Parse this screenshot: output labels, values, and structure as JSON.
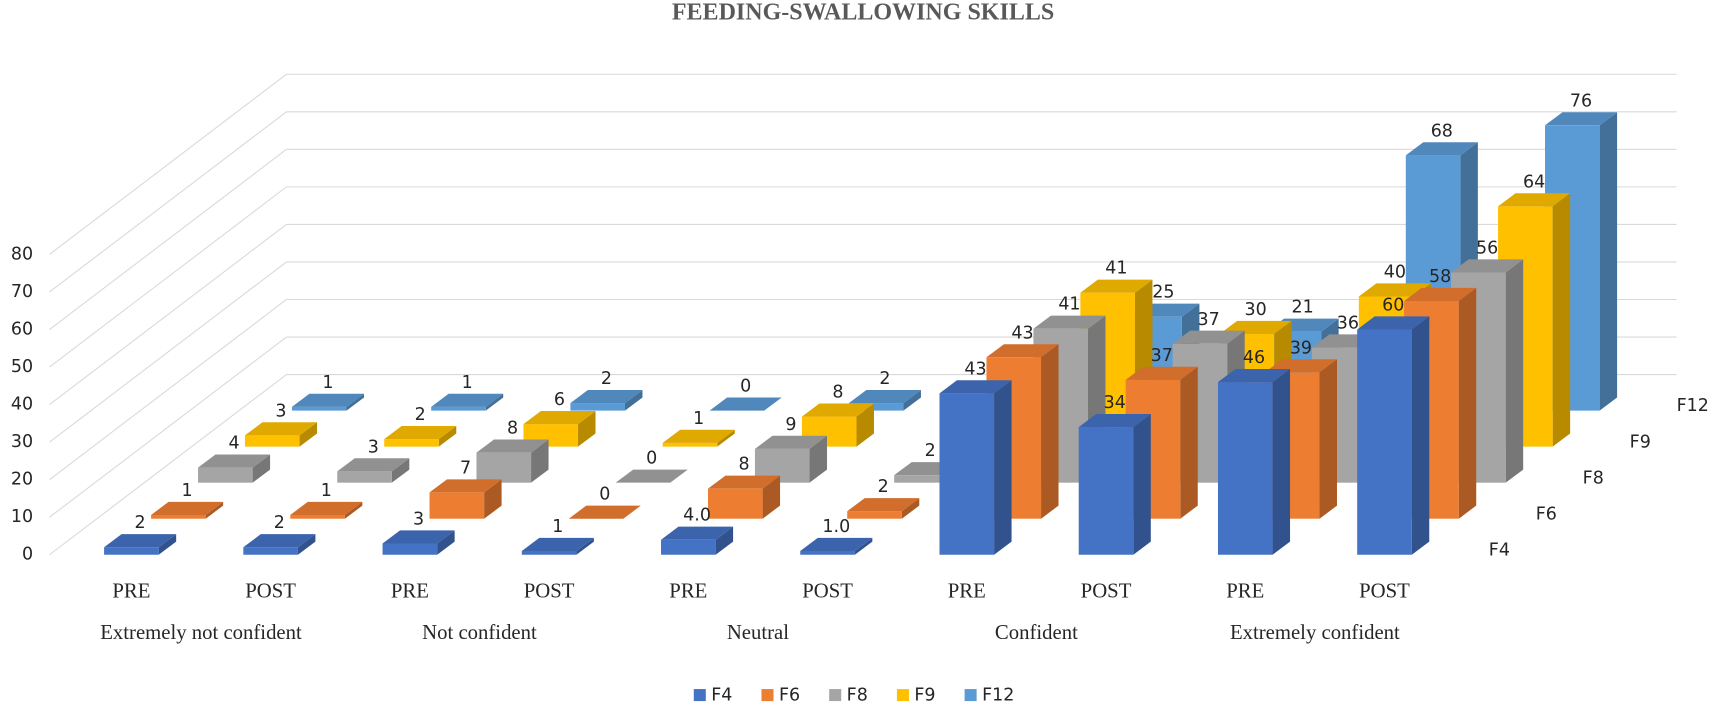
{
  "chart_data": {
    "type": "bar3d",
    "title": "FEEDING-SWALLOWING SKILLS",
    "categories": [
      "PRE",
      "POST",
      "PRE",
      "POST",
      "PRE",
      "POST",
      "PRE",
      "POST",
      "PRE",
      "POST"
    ],
    "category_groups": [
      "Extremely not confident",
      "Not confident",
      "Neutral",
      "Confident",
      "Extremely confident"
    ],
    "series": [
      {
        "name": "F4",
        "color": "#4472c4",
        "values": [
          2,
          2,
          3,
          1,
          4,
          1,
          43,
          34,
          46,
          60
        ],
        "value_labels": [
          "2",
          "2",
          "3",
          "1",
          "4.0",
          "1.0",
          "43",
          "34",
          "46",
          "60"
        ]
      },
      {
        "name": "F6",
        "color": "#ed7d31",
        "values": [
          1,
          1,
          7,
          0,
          8,
          2,
          43,
          37,
          39,
          58
        ]
      },
      {
        "name": "F8",
        "color": "#a5a5a5",
        "values": [
          4,
          3,
          8,
          0,
          9,
          2,
          41,
          37,
          36,
          56
        ]
      },
      {
        "name": "F9",
        "color": "#ffc000",
        "values": [
          3,
          2,
          6,
          1,
          8,
          1,
          41,
          30,
          40,
          64
        ]
      },
      {
        "name": "F12",
        "color": "#5b9bd5",
        "values": [
          1,
          1,
          2,
          0,
          2,
          0,
          25,
          21,
          68,
          76
        ]
      }
    ],
    "ylim": [
      0,
      80
    ],
    "yticks": [
      0,
      10,
      20,
      30,
      40,
      50,
      60,
      70,
      80
    ],
    "grid": true,
    "legend": "bottom"
  }
}
